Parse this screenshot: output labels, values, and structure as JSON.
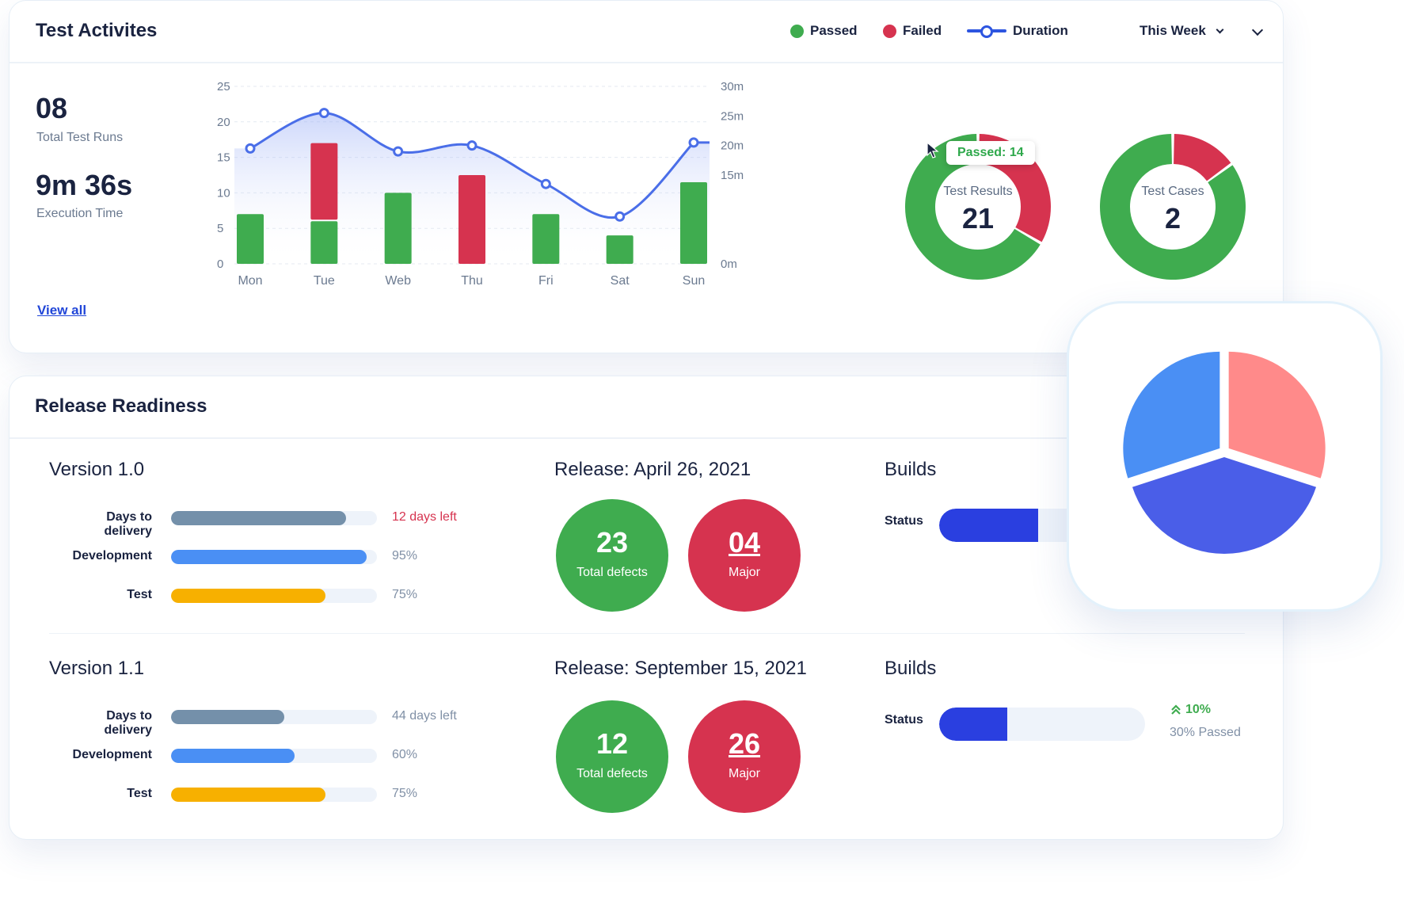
{
  "activities": {
    "title": "Test Activites",
    "legend": {
      "passed": "Passed",
      "failed": "Failed",
      "duration": "Duration"
    },
    "period": "This Week",
    "total_runs_value": "08",
    "total_runs_label": "Total Test Runs",
    "exec_time_value": "9m 36s",
    "exec_time_label": "Execution Time",
    "view_all": "View all"
  },
  "chart_data": {
    "type": "bar",
    "categories": [
      "Mon",
      "Tue",
      "Web",
      "Thu",
      "Fri",
      "Sat",
      "Sun"
    ],
    "series": [
      {
        "name": "Passed",
        "values": [
          7,
          6,
          10,
          0,
          7,
          4,
          11.5
        ]
      },
      {
        "name": "Failed",
        "values": [
          0,
          11,
          0,
          12.5,
          0,
          0,
          0
        ]
      },
      {
        "name": "Duration",
        "values": [
          19.5,
          25.5,
          19,
          20,
          13.5,
          8,
          20.5
        ]
      }
    ],
    "left_axis": {
      "ylim": [
        0,
        25
      ],
      "ticks": [
        "0",
        "5",
        "10",
        "15",
        "20",
        "25"
      ]
    },
    "right_axis": {
      "ylim": [
        0,
        30
      ],
      "ticks": [
        "0m",
        "15m",
        "20m",
        "25m",
        "30m"
      ]
    },
    "colors": {
      "passed": "#3fac4f",
      "failed": "#d6334f",
      "duration": "#4a6ee8"
    }
  },
  "donuts": {
    "results": {
      "label": "Test Results",
      "value": "21",
      "passed": 14,
      "failed": 7,
      "tooltip": "Passed: 14"
    },
    "cases": {
      "label": "Test Cases",
      "value": "2",
      "passed": 85,
      "failed": 15
    }
  },
  "release": {
    "title": "Release Readiness",
    "versions": [
      {
        "name": "Version 1.0",
        "release": "Release: April 26, 2021",
        "bars": [
          {
            "label": "Days to delivery",
            "percent": 85,
            "meta": "12 days left",
            "color": "#7490aa"
          },
          {
            "label": "Development",
            "percent": 95,
            "meta": "95%",
            "color": "#4a8ff4"
          },
          {
            "label": "Test",
            "percent": 75,
            "meta": "75%",
            "color": "#f7b000"
          }
        ],
        "total_defects": "23",
        "total_defects_label": "Total defects",
        "major": "04",
        "major_label": "Major",
        "builds": "Builds",
        "status_label": "Status",
        "status_percent": 48
      },
      {
        "name": "Version 1.1",
        "release": "Release: September 15, 2021",
        "bars": [
          {
            "label": "Days to delivery",
            "percent": 55,
            "meta": "44 days left",
            "color": "#7490aa"
          },
          {
            "label": "Development",
            "percent": 60,
            "meta": "60%",
            "color": "#4a8ff4"
          },
          {
            "label": "Test",
            "percent": 75,
            "meta": "75%",
            "color": "#f7b000"
          }
        ],
        "total_defects": "12",
        "total_defects_label": "Total defects",
        "major": "26",
        "major_label": "Major",
        "builds": "Builds",
        "status_label": "Status",
        "status_percent": 33,
        "trend": "10%",
        "passed_text": "30% Passed"
      }
    ]
  },
  "pie": {
    "slices": [
      30,
      40,
      30
    ],
    "colors": [
      "#ff8a8a",
      "#4a5ee8",
      "#4a8ff4"
    ]
  }
}
